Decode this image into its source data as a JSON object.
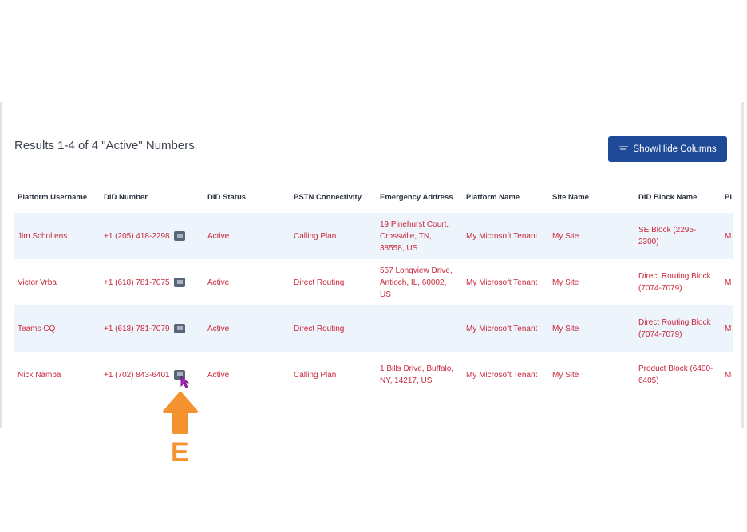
{
  "results_title": "Results 1-4 of 4 \"Active\" Numbers",
  "show_hide_button": "Show/Hide Columns",
  "columns": [
    "Platform Username",
    "DID Number",
    "DID Status",
    "PSTN Connectivity",
    "Emergency Address",
    "Platform Name",
    "Site Name",
    "DID Block Name",
    "Pl"
  ],
  "rows": [
    {
      "username": "Jim Scholtens",
      "did": "+1 (205) 418-2298",
      "status": "Active",
      "pstn": "Calling Plan",
      "address": "19 Pinehurst Court, Crossville, TN, 38558, US",
      "platform": "My Microsoft Tenant",
      "site": "My Site",
      "block": "SE Block (2295-2300)",
      "extra": "M"
    },
    {
      "username": "Victor Vrba",
      "did": "+1 (618) 781-7075",
      "status": "Active",
      "pstn": "Direct Routing",
      "address": "567 Longview Drive, Antioch, IL, 60002, US",
      "platform": "My Microsoft Tenant",
      "site": "My Site",
      "block": "Direct Routing Block (7074-7079)",
      "extra": "M"
    },
    {
      "username": "Teams CQ",
      "did": "+1 (618) 781-7079",
      "status": "Active",
      "pstn": "Direct Routing",
      "address": "",
      "platform": "My Microsoft Tenant",
      "site": "My Site",
      "block": "Direct Routing Block (7074-7079)",
      "extra": "M"
    },
    {
      "username": "Nick Namba",
      "did": "+1 (702) 843-6401",
      "status": "Active",
      "pstn": "Calling Plan",
      "address": "1 Bills Drive, Buffalo, NY, 14217, US",
      "platform": "My Microsoft Tenant",
      "site": "My Site",
      "block": "Product Block (6400-6405)",
      "extra": "M"
    }
  ],
  "annotation": {
    "label": "E",
    "color": "#f4922f"
  },
  "colors": {
    "accent": "#1f4a97",
    "link": "#c8283a",
    "row_alt": "#eef4fc"
  }
}
